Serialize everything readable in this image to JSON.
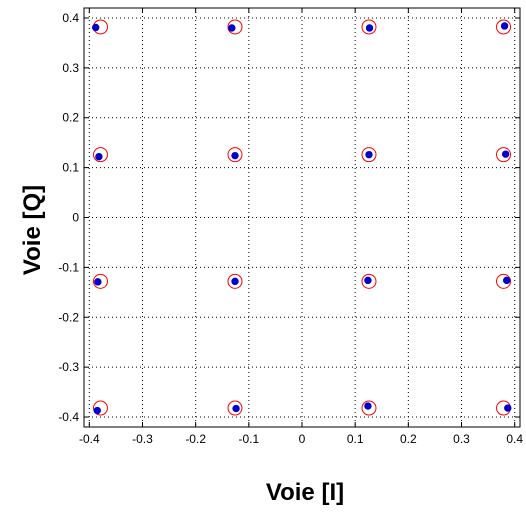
{
  "chart_data": {
    "type": "scatter",
    "title": "",
    "xlabel": "Voie [I]",
    "ylabel": "Voie [Q]",
    "xlim": [
      -0.41,
      0.41
    ],
    "ylim": [
      -0.42,
      0.42
    ],
    "grid": true,
    "x_ticks": [
      "-0.4",
      "-0.3",
      "-0.2",
      "-0.1",
      "0",
      "0.1",
      "0.2",
      "0.3",
      "0.4"
    ],
    "y_ticks": [
      "0.4",
      "0.3",
      "0.2",
      "0.1",
      "0",
      "-0.1",
      "-0.2",
      "-0.3",
      "-0.4"
    ],
    "series": [
      {
        "marker": "open-circle",
        "color": "#ff0000",
        "points": [
          [
            -0.379,
            0.382
          ],
          [
            -0.126,
            0.382
          ],
          [
            0.126,
            0.382
          ],
          [
            0.379,
            0.382
          ],
          [
            -0.379,
            0.126
          ],
          [
            -0.126,
            0.126
          ],
          [
            0.126,
            0.126
          ],
          [
            0.379,
            0.126
          ],
          [
            -0.379,
            -0.128
          ],
          [
            -0.126,
            -0.128
          ],
          [
            0.126,
            -0.128
          ],
          [
            0.379,
            -0.128
          ],
          [
            -0.379,
            -0.382
          ],
          [
            -0.126,
            -0.382
          ],
          [
            0.126,
            -0.382
          ],
          [
            0.379,
            -0.382
          ]
        ]
      },
      {
        "marker": "filled-dot",
        "color": "#0000cc",
        "points": [
          [
            -0.388,
            0.381
          ],
          [
            -0.132,
            0.38
          ],
          [
            0.127,
            0.38
          ],
          [
            0.381,
            0.384
          ],
          [
            -0.382,
            0.122
          ],
          [
            -0.126,
            0.124
          ],
          [
            0.126,
            0.126
          ],
          [
            0.383,
            0.127
          ],
          [
            -0.384,
            -0.129
          ],
          [
            -0.126,
            -0.128
          ],
          [
            0.124,
            -0.126
          ],
          [
            0.385,
            -0.126
          ],
          [
            -0.385,
            -0.387
          ],
          [
            -0.124,
            -0.383
          ],
          [
            0.124,
            -0.378
          ],
          [
            0.387,
            -0.382
          ]
        ]
      }
    ]
  }
}
